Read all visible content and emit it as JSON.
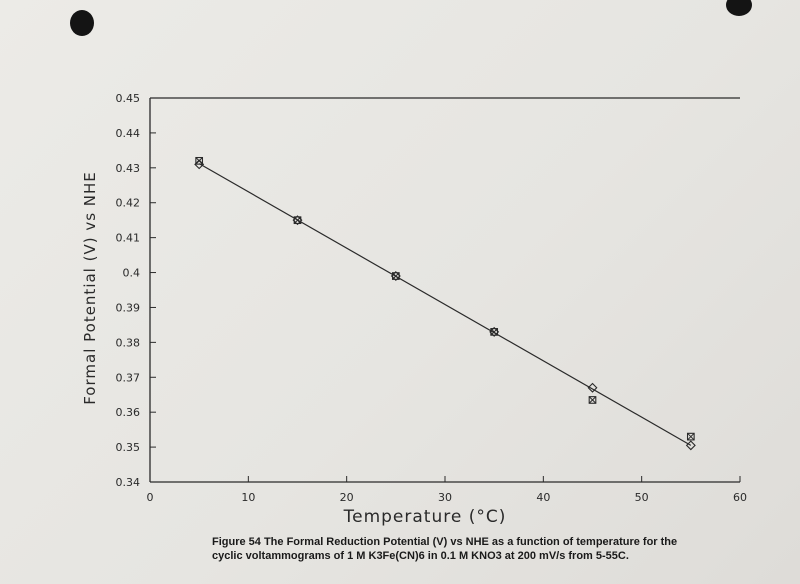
{
  "chart_data": {
    "type": "scatter",
    "title": "",
    "xlabel": "Temperature (°C)",
    "ylabel": "Formal Potential (V) vs NHE",
    "xlim": [
      0,
      60
    ],
    "ylim": [
      0.34,
      0.45
    ],
    "x_ticks": [
      "0",
      "10",
      "20",
      "30",
      "40",
      "50",
      "60"
    ],
    "y_ticks": [
      "0.34",
      "0.35",
      "0.36",
      "0.37",
      "0.38",
      "0.39",
      "0.4",
      "0.41",
      "0.42",
      "0.43",
      "0.44",
      "0.45"
    ],
    "grid": false,
    "legend": "none",
    "series": [
      {
        "marker": "diamond",
        "x": [
          5,
          15,
          25,
          35,
          45,
          55
        ],
        "y": [
          0.431,
          0.415,
          0.399,
          0.383,
          0.367,
          0.3505
        ]
      },
      {
        "marker": "square-x",
        "x": [
          5,
          15,
          25,
          35,
          45,
          55
        ],
        "y": [
          0.432,
          0.415,
          0.399,
          0.383,
          0.3635,
          0.353
        ]
      }
    ],
    "fit_line": {
      "x": [
        5,
        55
      ],
      "y": [
        0.4312,
        0.3505
      ]
    }
  },
  "caption": {
    "line1": "Figure 54 The Formal Reduction Potential (V) vs NHE as a function of temperature for the",
    "line2": "cyclic voltammograms of 1 M K3Fe(CN)6 in 0.1 M KNO3 at 200 mV/s from 5-55C."
  },
  "colors": {
    "ink": "#2a2a2a",
    "paper": "#e9e8e4",
    "hole": "#141414"
  }
}
